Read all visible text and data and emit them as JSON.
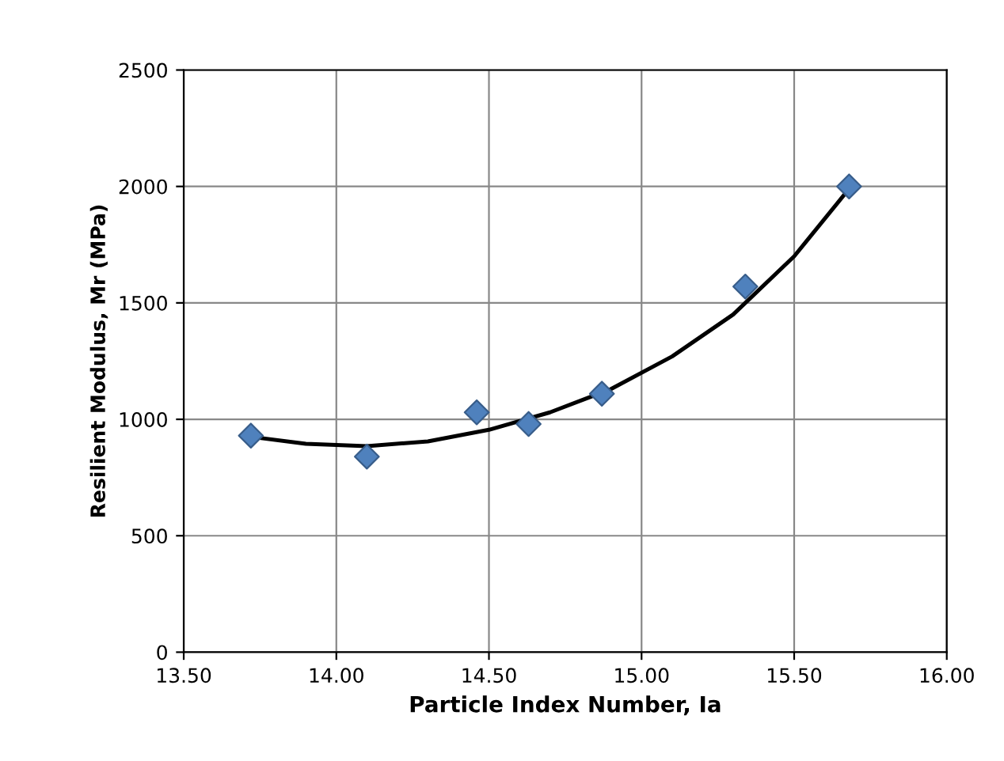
{
  "chart_data": {
    "type": "scatter",
    "xlabel": "Particle Index Number, Ia",
    "ylabel": "Resilient Modulus, Mr (MPa)",
    "series": [
      {
        "color": "#4f81bd",
        "marker": "diamond",
        "x": [
          13.72,
          14.1,
          14.46,
          14.63,
          14.87,
          15.34,
          15.68
        ],
        "values": [
          930,
          840,
          1030,
          980,
          1110,
          1570,
          2000
        ]
      },
      {
        "type": "line",
        "color": "#000000",
        "marker": "none",
        "x": [
          13.72,
          13.9,
          14.1,
          14.3,
          14.5,
          14.7,
          14.9,
          15.1,
          15.3,
          15.5,
          15.68
        ],
        "values": [
          925,
          895,
          885,
          905,
          955,
          1030,
          1130,
          1270,
          1450,
          1700,
          1990
        ]
      }
    ],
    "xlim": [
      13.5,
      16.0
    ],
    "xticks": [
      {
        "value": 13.5,
        "label": "13.50"
      },
      {
        "value": 14.0,
        "label": "14.00"
      },
      {
        "value": 14.5,
        "label": "14.50"
      },
      {
        "value": 15.0,
        "label": "15.00"
      },
      {
        "value": 15.5,
        "label": "15.50"
      },
      {
        "value": 16.0,
        "label": "16.00"
      }
    ],
    "ylim": [
      0,
      2500
    ],
    "yticks": [
      0,
      500,
      1000,
      1500,
      2000,
      2500
    ],
    "grid": true,
    "legend": false
  }
}
